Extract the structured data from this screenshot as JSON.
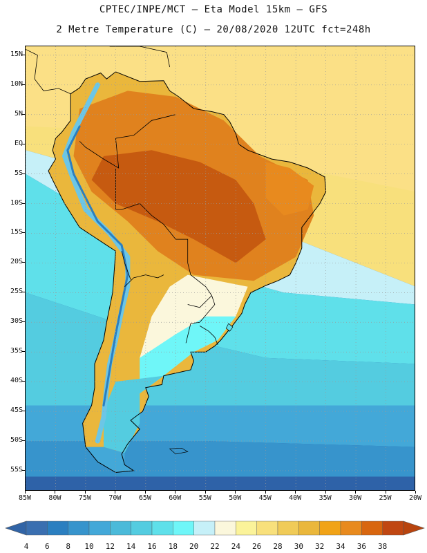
{
  "header": {
    "line1": "CPTEC/INPE/MCT –  Eta Model 15km – GFS",
    "line2": "2 Metre Temperature (C) – 20/08/2020 12UTC fct=248h"
  },
  "map": {
    "lat_labels": [
      "15N",
      "10N",
      "5N",
      "EQ",
      "5S",
      "10S",
      "15S",
      "20S",
      "25S",
      "30S",
      "35S",
      "40S",
      "45S",
      "50S",
      "55S"
    ],
    "lon_labels": [
      "85W",
      "80W",
      "75W",
      "70W",
      "65W",
      "60W",
      "55W",
      "50W",
      "45W",
      "40W",
      "35W",
      "30W",
      "25W",
      "20W"
    ],
    "lon_range": [
      -85,
      -20
    ],
    "lat_range": [
      -58.5,
      16.5
    ],
    "colors": {
      "ocean_cold": "#2e62a8",
      "ocean_mid": "#49b5d8",
      "ocean_warm": "#fbe086",
      "land_hot": "#e0821e",
      "land_very_hot": "#c65a10",
      "andes_cold": "#6cc6e6",
      "coast": "#000000",
      "grid": "#9a9a9a"
    }
  },
  "colorbar": {
    "labels": [
      "4",
      "6",
      "8",
      "10",
      "12",
      "14",
      "16",
      "18",
      "20",
      "22",
      "24",
      "26",
      "28",
      "30",
      "32",
      "34",
      "36",
      "38"
    ],
    "colors": [
      "#3a6fb0",
      "#2b7fc0",
      "#3794cc",
      "#43a8d8",
      "#4bbad9",
      "#54cce0",
      "#5fe0ea",
      "#6ff6f8",
      "#c6f0f8",
      "#fbf7dc",
      "#fbf39a",
      "#f8e07c",
      "#f0cb58",
      "#eab73c",
      "#f1a317",
      "#e88a1e",
      "#d8660f",
      "#c04712"
    ],
    "end_colors": [
      "#3164a6",
      "#b8440e"
    ]
  }
}
